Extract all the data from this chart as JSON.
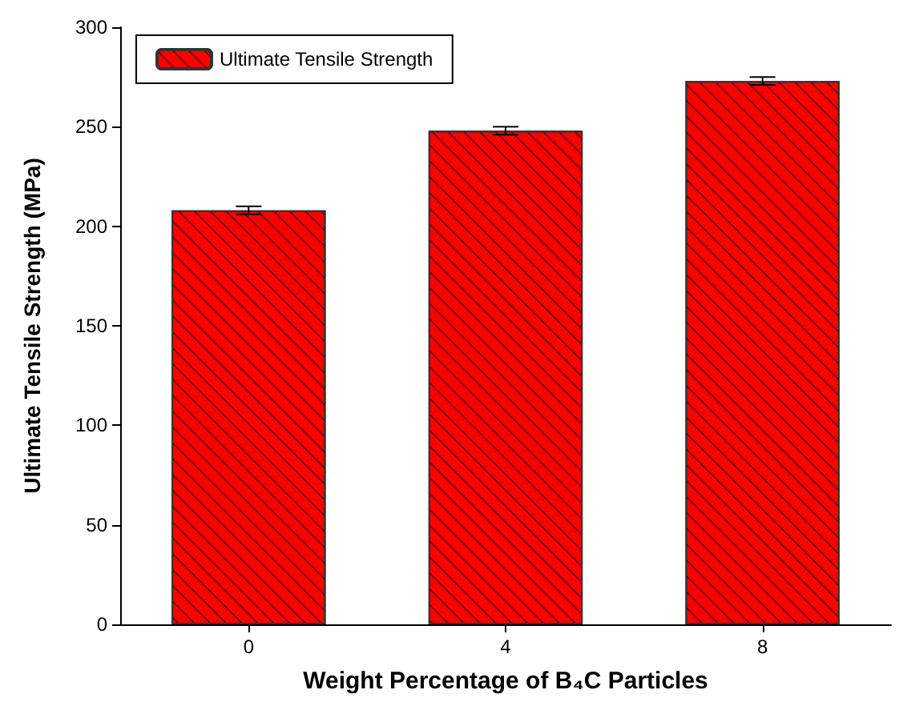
{
  "chart_data": {
    "type": "bar",
    "xlabel": "Weight Percentage of B₄C Particles",
    "ylabel": "Ultimate Tensile Strength (MPa)",
    "categories": [
      "0",
      "4",
      "8"
    ],
    "series": [
      {
        "name": "Ultimate Tensile Strength",
        "color": "#ff0000",
        "values": [
          208,
          248,
          273
        ],
        "errors": [
          2,
          2,
          2
        ]
      }
    ],
    "ylim": [
      0,
      300
    ],
    "yticks": [
      0,
      50,
      100,
      150,
      200,
      250,
      300
    ],
    "legend": "top left",
    "grid": false
  }
}
